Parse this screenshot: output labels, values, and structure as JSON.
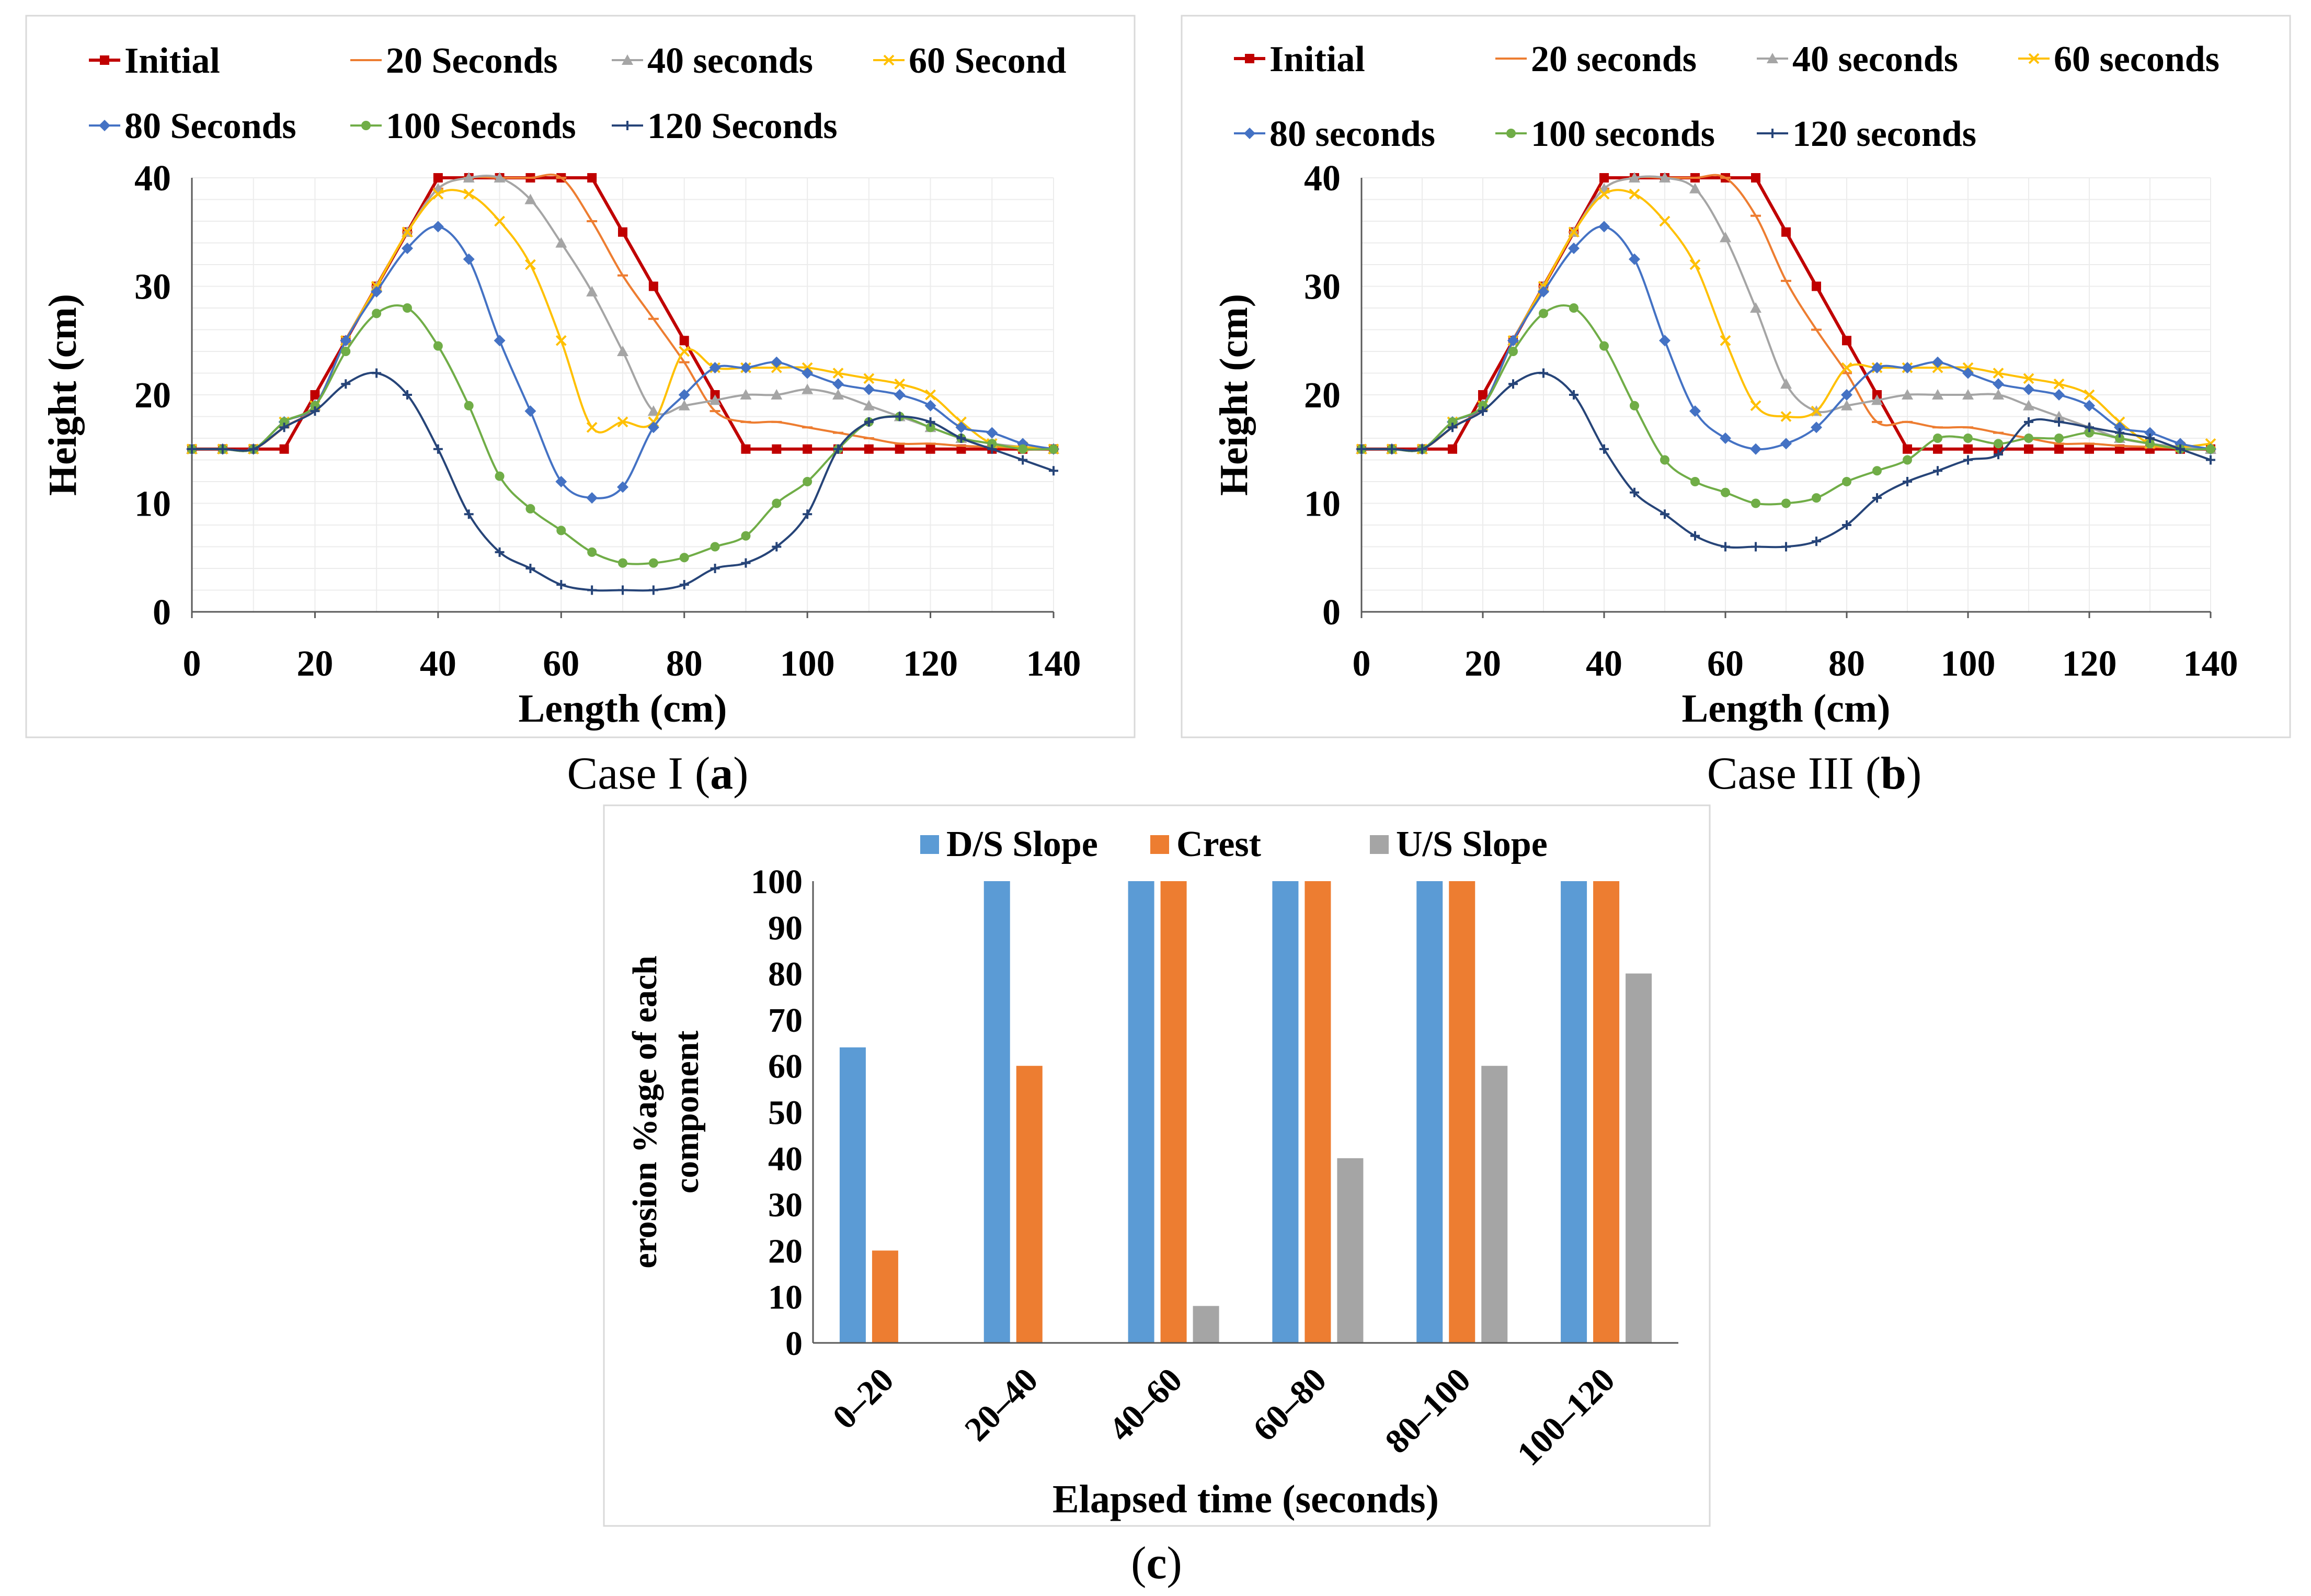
{
  "colors": {
    "initial": "#C00000",
    "s20": "#ED7D31",
    "s40": "#A5A5A5",
    "s60": "#FFC000",
    "s80": "#4472C4",
    "s100": "#70AD47",
    "s120": "#264478",
    "ds": "#5B9BD5",
    "crest": "#ED7D31",
    "us": "#A5A5A5"
  },
  "captions": {
    "a_prefix": "Case I (",
    "a_letter": "a",
    "a_suffix": ")",
    "b_prefix": "Case III (",
    "b_letter": "b",
    "b_suffix": ")",
    "c_prefix": "(",
    "c_letter": "c",
    "c_suffix": ")"
  },
  "chart_data": [
    {
      "id": "a",
      "type": "line",
      "xlabel": "Length (cm)",
      "ylabel": "Height (cm)",
      "xlim": [
        0,
        140
      ],
      "ylim": [
        0,
        40
      ],
      "xticks": [
        0,
        20,
        40,
        60,
        80,
        100,
        120,
        140
      ],
      "yticks": [
        0,
        10,
        20,
        30,
        40
      ],
      "x": [
        0,
        5,
        10,
        15,
        20,
        25,
        30,
        35,
        40,
        45,
        50,
        55,
        60,
        65,
        70,
        75,
        80,
        85,
        90,
        95,
        100,
        105,
        110,
        115,
        120,
        125,
        130,
        135,
        140
      ],
      "legend_rows": [
        [
          0,
          1,
          2,
          3
        ],
        [
          4,
          5,
          6
        ]
      ],
      "series": [
        {
          "name": "Initial",
          "color_key": "initial",
          "marker": "square",
          "values": [
            15,
            15,
            15,
            15,
            20,
            25,
            30,
            35,
            40,
            40,
            40,
            40,
            40,
            40,
            35,
            30,
            25,
            20,
            15,
            15,
            15,
            15,
            15,
            15,
            15,
            15,
            15,
            15,
            15
          ]
        },
        {
          "name": "20 Seconds",
          "color_key": "s20",
          "marker": "dash",
          "values": [
            15,
            15,
            15,
            17,
            19,
            25,
            30,
            35,
            39,
            40,
            40,
            40,
            40,
            36,
            31,
            27,
            23,
            18.5,
            17.5,
            17.5,
            17,
            16.5,
            16,
            15.5,
            15.5,
            15.3,
            15.2,
            15.1,
            15
          ]
        },
        {
          "name": "40 seconds",
          "color_key": "s40",
          "marker": "triangle",
          "values": [
            15,
            15,
            15,
            17.5,
            19,
            25,
            30,
            35,
            39,
            40,
            40,
            38,
            34,
            29.5,
            24,
            18.5,
            19,
            19.5,
            20,
            20,
            20.5,
            20,
            19,
            18,
            17,
            16,
            15.5,
            15.2,
            15
          ]
        },
        {
          "name": "60 Second",
          "color_key": "s60",
          "marker": "cross",
          "values": [
            15,
            15,
            15,
            17.5,
            19,
            25,
            30,
            35,
            38.5,
            38.5,
            36,
            32,
            25,
            17,
            17.5,
            17.5,
            24,
            22.5,
            22.5,
            22.5,
            22.5,
            22,
            21.5,
            21,
            20,
            17.5,
            15.5,
            15.2,
            15
          ]
        },
        {
          "name": "80 Seconds",
          "color_key": "s80",
          "marker": "diamond",
          "values": [
            15,
            15,
            15,
            17.5,
            19,
            25,
            29.5,
            33.5,
            35.5,
            32.5,
            25,
            18.5,
            12,
            10.5,
            11.5,
            17,
            20,
            22.5,
            22.5,
            23,
            22,
            21,
            20.5,
            20,
            19,
            17,
            16.5,
            15.5,
            15
          ]
        },
        {
          "name": "100 Seconds",
          "color_key": "s100",
          "marker": "circle",
          "values": [
            15,
            15,
            15,
            17.5,
            19,
            24,
            27.5,
            28,
            24.5,
            19,
            12.5,
            9.5,
            7.5,
            5.5,
            4.5,
            4.5,
            5,
            6,
            7,
            10,
            12,
            15,
            17.5,
            18,
            17,
            16,
            15.5,
            15,
            15
          ]
        },
        {
          "name": "120 Seconds",
          "color_key": "s120",
          "marker": "plus",
          "values": [
            15,
            15,
            15,
            17,
            18.5,
            21,
            22,
            20,
            15,
            9,
            5.5,
            4,
            2.5,
            2,
            2,
            2,
            2.5,
            4,
            4.5,
            6,
            9,
            15,
            17.5,
            18,
            17.5,
            16,
            15,
            14,
            13
          ]
        }
      ]
    },
    {
      "id": "b",
      "type": "line",
      "xlabel": "Length (cm)",
      "ylabel": "Height (cm)",
      "xlim": [
        0,
        140
      ],
      "ylim": [
        0,
        40
      ],
      "xticks": [
        0,
        20,
        40,
        60,
        80,
        100,
        120,
        140
      ],
      "yticks": [
        0,
        10,
        20,
        30,
        40
      ],
      "x": [
        0,
        5,
        10,
        15,
        20,
        25,
        30,
        35,
        40,
        45,
        50,
        55,
        60,
        65,
        70,
        75,
        80,
        85,
        90,
        95,
        100,
        105,
        110,
        115,
        120,
        125,
        130,
        135,
        140
      ],
      "legend_rows": [
        [
          0,
          1,
          2,
          3
        ],
        [
          4,
          5,
          6
        ]
      ],
      "series": [
        {
          "name": "Initial",
          "color_key": "initial",
          "marker": "square",
          "values": [
            15,
            15,
            15,
            15,
            20,
            25,
            30,
            35,
            40,
            40,
            40,
            40,
            40,
            40,
            35,
            30,
            25,
            20,
            15,
            15,
            15,
            15,
            15,
            15,
            15,
            15,
            15,
            15,
            15
          ]
        },
        {
          "name": "20 seconds",
          "color_key": "s20",
          "marker": "dash",
          "values": [
            15,
            15,
            15,
            17,
            19,
            25,
            30,
            35,
            39,
            40,
            40,
            40,
            40,
            36.5,
            30.5,
            26,
            22,
            17.5,
            17.5,
            17,
            17,
            16.5,
            16,
            15.5,
            15.5,
            15.3,
            15.2,
            15.1,
            15
          ]
        },
        {
          "name": "40 seconds",
          "color_key": "s40",
          "marker": "triangle",
          "values": [
            15,
            15,
            15,
            17.5,
            19,
            25,
            30,
            35,
            39,
            40,
            40,
            39,
            34.5,
            28,
            21,
            18.5,
            19,
            19.5,
            20,
            20,
            20,
            20,
            19,
            18,
            17,
            16,
            15.5,
            15.2,
            15
          ]
        },
        {
          "name": "60 seconds",
          "color_key": "s60",
          "marker": "cross",
          "values": [
            15,
            15,
            15,
            17.5,
            19,
            25,
            30,
            35,
            38.5,
            38.5,
            36,
            32,
            25,
            19,
            18,
            18.5,
            22.5,
            22.5,
            22.5,
            22.5,
            22.5,
            22,
            21.5,
            21,
            20,
            17.5,
            15.5,
            15.2,
            15.5
          ]
        },
        {
          "name": "80 seconds",
          "color_key": "s80",
          "marker": "diamond",
          "values": [
            15,
            15,
            15,
            17.5,
            19,
            25,
            29.5,
            33.5,
            35.5,
            32.5,
            25,
            18.5,
            16,
            15,
            15.5,
            17,
            20,
            22.5,
            22.5,
            23,
            22,
            21,
            20.5,
            20,
            19,
            17,
            16.5,
            15.5,
            15
          ]
        },
        {
          "name": "100 seconds",
          "color_key": "s100",
          "marker": "circle",
          "values": [
            15,
            15,
            15,
            17.5,
            19,
            24,
            27.5,
            28,
            24.5,
            19,
            14,
            12,
            11,
            10,
            10,
            10.5,
            12,
            13,
            14,
            16,
            16,
            15.5,
            16,
            16,
            16.5,
            16,
            15.5,
            15,
            15
          ]
        },
        {
          "name": "120 seconds",
          "color_key": "s120",
          "marker": "plus",
          "values": [
            15,
            15,
            15,
            17,
            18.5,
            21,
            22,
            20,
            15,
            11,
            9,
            7,
            6,
            6,
            6,
            6.5,
            8,
            10.5,
            12,
            13,
            14,
            14.5,
            17.5,
            17.5,
            17,
            16.5,
            16,
            15,
            14
          ]
        }
      ]
    },
    {
      "id": "c",
      "type": "bar",
      "xlabel": "Elapsed time (seconds)",
      "ylabel_lines": [
        "erosion %age of each",
        "component"
      ],
      "ylim": [
        0,
        100
      ],
      "yticks": [
        0,
        10,
        20,
        30,
        40,
        50,
        60,
        70,
        80,
        90,
        100
      ],
      "categories": [
        "0–20",
        "20–40",
        "40–60",
        "60–80",
        "80–100",
        "100–120"
      ],
      "series": [
        {
          "name": "D/S Slope",
          "color_key": "ds",
          "values": [
            64,
            100,
            100,
            100,
            100,
            100
          ]
        },
        {
          "name": "Crest",
          "color_key": "crest",
          "values": [
            20,
            60,
            100,
            100,
            100,
            100
          ]
        },
        {
          "name": "U/S Slope",
          "color_key": "us",
          "values": [
            0,
            0,
            8,
            40,
            60,
            80
          ]
        }
      ]
    }
  ]
}
